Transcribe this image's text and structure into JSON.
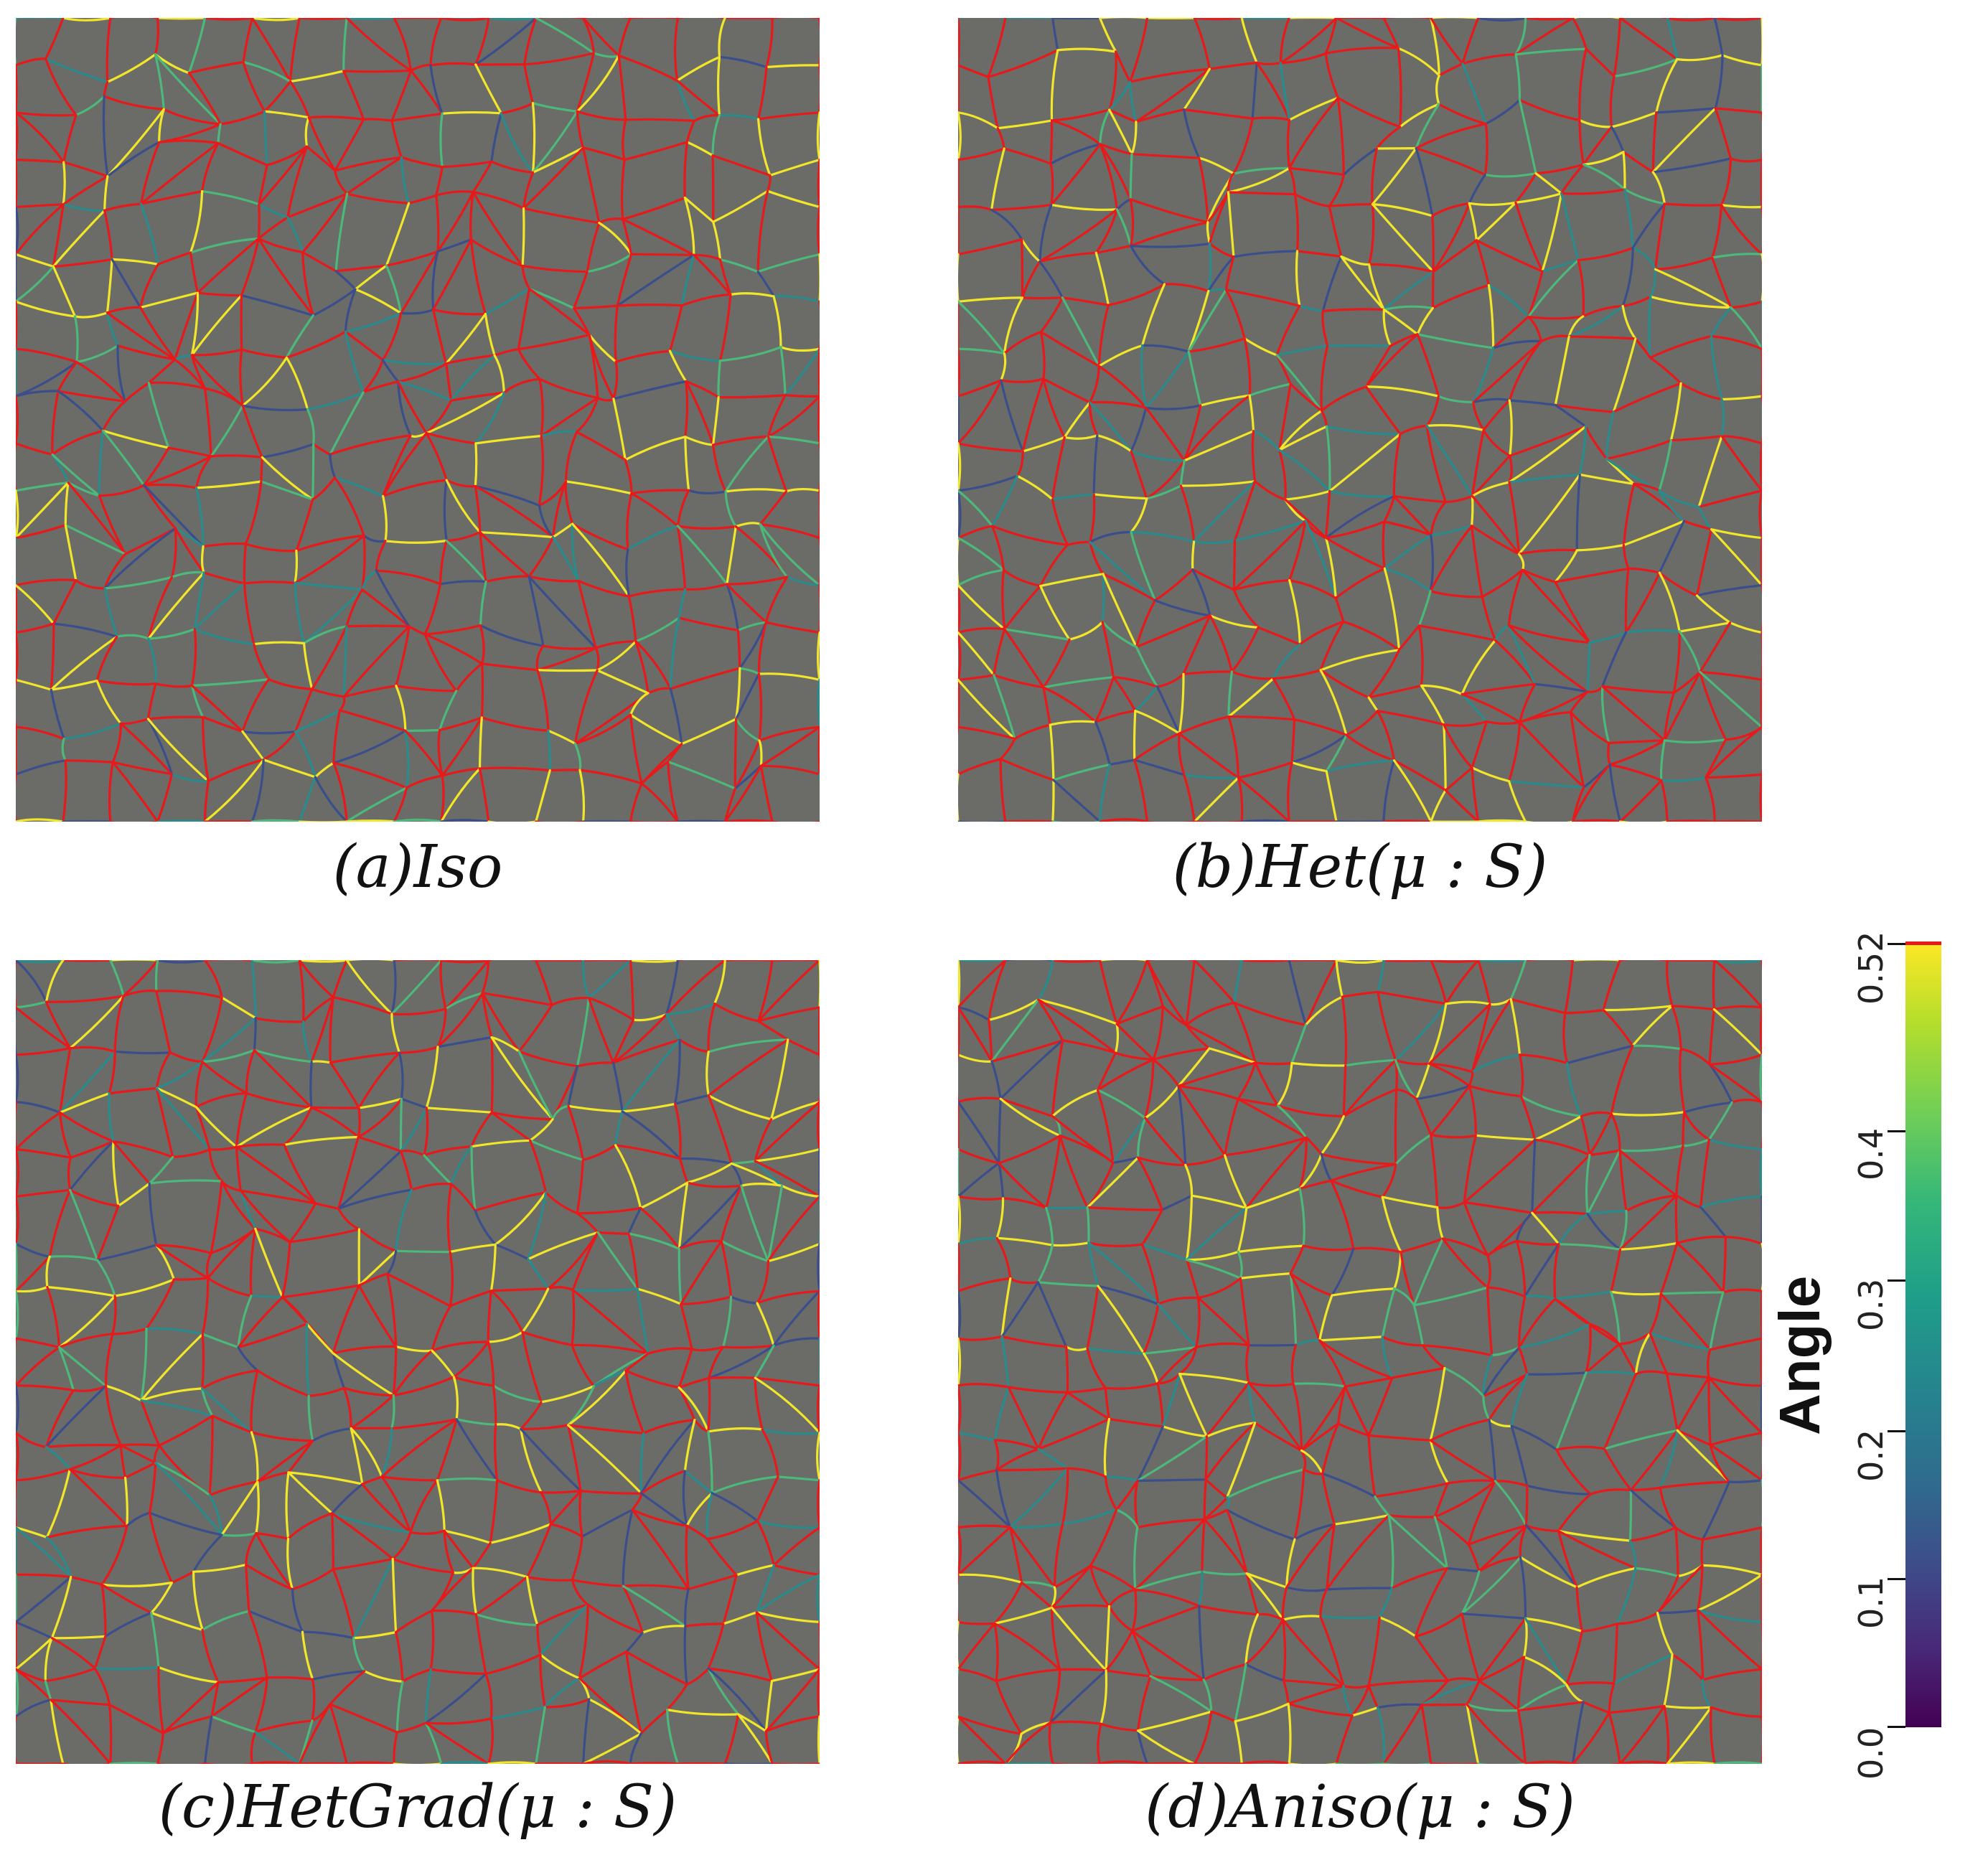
{
  "panels": [
    {
      "id": "a",
      "caption": "(a)Iso"
    },
    {
      "id": "b",
      "caption": "(b)Het(μ : S)"
    },
    {
      "id": "c",
      "caption": "(c)HetGrad(μ : S)"
    },
    {
      "id": "d",
      "caption": "(d)Aniso(μ : S)"
    }
  ],
  "colorbar": {
    "title": "Angle",
    "ticks": [
      "0.0",
      "0.1",
      "0.2",
      "0.3",
      "0.4",
      "0.52"
    ],
    "range": [
      0.0,
      0.52
    ],
    "colormap": "viridis",
    "max_marker_color": "#e8191b"
  },
  "colors": {
    "grain_fill": "#6b6b68",
    "boundary_high_angle": "#e8191b",
    "boundary_yellow": "#f2e62a",
    "boundary_green": "#4cb97a",
    "boundary_teal": "#2a8b8c",
    "boundary_blue": "#3b4e8c"
  }
}
